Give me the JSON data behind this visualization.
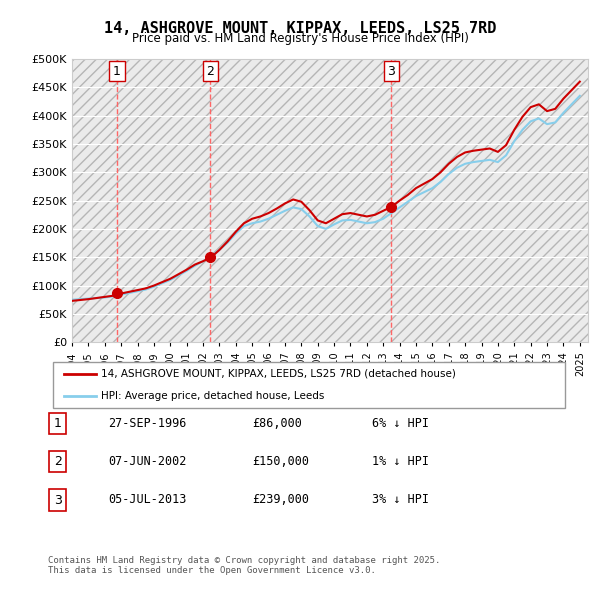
{
  "title": "14, ASHGROVE MOUNT, KIPPAX, LEEDS, LS25 7RD",
  "subtitle": "Price paid vs. HM Land Registry's House Price Index (HPI)",
  "ylabel_ticks": [
    "£0",
    "£50K",
    "£100K",
    "£150K",
    "£200K",
    "£250K",
    "£300K",
    "£350K",
    "£400K",
    "£450K",
    "£500K"
  ],
  "ytick_values": [
    0,
    50000,
    100000,
    150000,
    200000,
    250000,
    300000,
    350000,
    400000,
    450000,
    500000
  ],
  "ylim": [
    0,
    500000
  ],
  "xlim_start": 1994.0,
  "xlim_end": 2025.5,
  "sales": [
    {
      "year": 1996.74,
      "price": 86000,
      "label": "1"
    },
    {
      "year": 2002.44,
      "price": 150000,
      "label": "2"
    },
    {
      "year": 2013.5,
      "price": 239000,
      "label": "3"
    }
  ],
  "hpi_line_color": "#87CEEB",
  "price_line_color": "#CC0000",
  "sale_marker_color": "#CC0000",
  "sale_vline_color": "#FF6666",
  "sale_box_color": "#CC0000",
  "background_color": "#ffffff",
  "plot_bg_color": "#f0f0f0",
  "hatch_color": "#e0e0e0",
  "legend_label_red": "14, ASHGROVE MOUNT, KIPPAX, LEEDS, LS25 7RD (detached house)",
  "legend_label_blue": "HPI: Average price, detached house, Leeds",
  "table_rows": [
    {
      "num": "1",
      "date": "27-SEP-1996",
      "price": "£86,000",
      "pct": "6% ↓ HPI"
    },
    {
      "num": "2",
      "date": "07-JUN-2002",
      "price": "£150,000",
      "pct": "1% ↓ HPI"
    },
    {
      "num": "3",
      "date": "05-JUL-2013",
      "price": "£239,000",
      "pct": "3% ↓ HPI"
    }
  ],
  "footnote": "Contains HM Land Registry data © Crown copyright and database right 2025.\nThis data is licensed under the Open Government Licence v3.0.",
  "hpi_data_years": [
    1994,
    1994.5,
    1995,
    1995.5,
    1996,
    1996.5,
    1997,
    1997.5,
    1998,
    1998.5,
    1999,
    1999.5,
    2000,
    2000.5,
    2001,
    2001.5,
    2002,
    2002.5,
    2003,
    2003.5,
    2004,
    2004.5,
    2005,
    2005.5,
    2006,
    2006.5,
    2007,
    2007.5,
    2008,
    2008.5,
    2009,
    2009.5,
    2010,
    2010.5,
    2011,
    2011.5,
    2012,
    2012.5,
    2013,
    2013.5,
    2014,
    2014.5,
    2015,
    2015.5,
    2016,
    2016.5,
    2017,
    2017.5,
    2018,
    2018.5,
    2019,
    2019.5,
    2020,
    2020.5,
    2021,
    2021.5,
    2022,
    2022.5,
    2023,
    2023.5,
    2024,
    2024.5,
    2025
  ],
  "hpi_data_values": [
    75000,
    76000,
    77000,
    78000,
    79000,
    81000,
    84000,
    87000,
    90000,
    93000,
    98000,
    104000,
    110000,
    118000,
    126000,
    135000,
    143000,
    152000,
    163000,
    176000,
    192000,
    205000,
    210000,
    213000,
    218000,
    225000,
    232000,
    238000,
    235000,
    222000,
    205000,
    200000,
    208000,
    215000,
    216000,
    213000,
    210000,
    212000,
    218000,
    228000,
    238000,
    248000,
    258000,
    265000,
    272000,
    283000,
    297000,
    308000,
    315000,
    318000,
    320000,
    322000,
    318000,
    330000,
    355000,
    375000,
    390000,
    395000,
    385000,
    388000,
    405000,
    420000,
    435000
  ],
  "price_data_years": [
    1994,
    1994.5,
    1995,
    1995.5,
    1996,
    1996.5,
    1997,
    1997.5,
    1998,
    1998.5,
    1999,
    1999.5,
    2000,
    2000.5,
    2001,
    2001.5,
    2002,
    2002.5,
    2003,
    2003.5,
    2004,
    2004.5,
    2005,
    2005.5,
    2006,
    2006.5,
    2007,
    2007.5,
    2008,
    2008.5,
    2009,
    2009.5,
    2010,
    2010.5,
    2011,
    2011.5,
    2012,
    2012.5,
    2013,
    2013.5,
    2014,
    2014.5,
    2015,
    2015.5,
    2016,
    2016.5,
    2017,
    2017.5,
    2018,
    2018.5,
    2019,
    2019.5,
    2020,
    2020.5,
    2021,
    2021.5,
    2022,
    2022.5,
    2023,
    2023.5,
    2024,
    2024.5,
    2025
  ],
  "price_data_values": [
    73000,
    74500,
    76000,
    78000,
    80000,
    82000,
    86000,
    89000,
    92000,
    95000,
    100000,
    106000,
    112000,
    120000,
    128000,
    137000,
    143000,
    150000,
    163000,
    178000,
    195000,
    210000,
    218000,
    222000,
    228000,
    236000,
    245000,
    252000,
    248000,
    233000,
    215000,
    210000,
    218000,
    226000,
    228000,
    225000,
    222000,
    225000,
    232000,
    239000,
    250000,
    260000,
    272000,
    280000,
    288000,
    300000,
    315000,
    327000,
    335000,
    338000,
    340000,
    342000,
    336000,
    348000,
    375000,
    398000,
    415000,
    420000,
    408000,
    412000,
    430000,
    445000,
    460000
  ]
}
